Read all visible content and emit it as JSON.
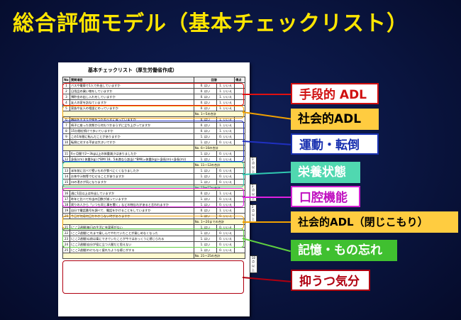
{
  "slide": {
    "title": "総合評価モデル（基本チェックリスト）"
  },
  "sheet": {
    "title": "基本チェックリスト（厚生労働省作成）",
    "header": {
      "no": "No",
      "question": "質問項目",
      "answer": "回答",
      "score": "得点"
    },
    "rows": [
      {
        "no": "1",
        "q": "バスや電車で1人で外出していますか",
        "a": "0. はい",
        "b": "1. いいえ"
      },
      {
        "no": "2",
        "q": "日用品の買い物をしていますか",
        "a": "0. はい",
        "b": "1. いいえ"
      },
      {
        "no": "3",
        "q": "預貯金の出し入れをしていますか",
        "a": "0. はい",
        "b": "1. いいえ"
      },
      {
        "no": "4",
        "q": "友人の家を訪ねていますか",
        "a": "0. はい",
        "b": "1. いいえ"
      },
      {
        "no": "5",
        "q": "家族や友人の相談にのっていますか",
        "a": "0. はい",
        "b": "1. いいえ"
      },
      {
        "sum": "No. 1～5の合計"
      },
      {
        "no": "6",
        "q": "階段を手すりや壁をつたわらずに昇っていますか",
        "a": "0. はい",
        "b": "1. いいえ"
      },
      {
        "no": "7",
        "q": "椅子に座った状態から何もつかまらずに立ち上がってますか",
        "a": "0. はい",
        "b": "1. いいえ"
      },
      {
        "no": "8",
        "q": "15分間位続けて歩いていますか",
        "a": "0. はい",
        "b": "1. いいえ"
      },
      {
        "no": "9",
        "q": "この1年間に転んだことがありますか",
        "a": "1. はい",
        "b": "0. いいえ"
      },
      {
        "no": "10",
        "q": "転倒に対する不安は大きいですか",
        "a": "1. はい",
        "b": "0. いいえ"
      },
      {
        "sum": "No. 6～10の合計"
      },
      {
        "no": "11",
        "q": "6ヶ月間で2～3kg以上の体重減少はありましたか",
        "a": "1. はい",
        "b": "0. いいえ"
      },
      {
        "no": "12",
        "q": "身長(cm) 体重(kg) (*BMI 18．5未満なら該当) *BMI(=体重(kg)÷身長(m)÷身長(m))",
        "a": "1. はい",
        "b": "0. いいえ"
      },
      {
        "sum": "No. 11～12の合計"
      },
      {
        "no": "13",
        "q": "半年前に比べて堅いものが食べにくくなりましたか",
        "a": "1. はい",
        "b": "0. いいえ"
      },
      {
        "no": "14",
        "q": "お茶や汁物等でむせることがありますか",
        "a": "1. はい",
        "b": "0. いいえ"
      },
      {
        "no": "15",
        "q": "口の渇きが気になりますか",
        "a": "1. はい",
        "b": "0. いいえ"
      },
      {
        "sum": "No. 13～15の合計"
      },
      {
        "no": "16",
        "q": "週に1回以上は外出していますか",
        "a": "0. はい",
        "b": "1. いいえ"
      },
      {
        "no": "17",
        "q": "昨年と比べて外出の回数が減っていますか",
        "a": "1. はい",
        "b": "0. いいえ"
      },
      {
        "no": "18",
        "q": "周りの人から「いつも同じ事を聞く」などの物忘れがあると言われますか",
        "a": "1. はい",
        "b": "0. いいえ"
      },
      {
        "no": "19",
        "q": "自分で電話番号を調べて、電話をかけることをしていますか",
        "a": "0. はい",
        "b": "1. いいえ"
      },
      {
        "no": "20",
        "q": "今日が何月何日かわからない時がありますか",
        "a": "1. はい",
        "b": "0. いいえ"
      },
      {
        "sum": "No. 1～20までの合計"
      },
      {
        "no": "21",
        "q": "(ここ2週間)毎日の生活に充実感がない",
        "a": "1. はい",
        "b": "0. いいえ"
      },
      {
        "no": "22",
        "q": "(ここ2週間)これまで楽しんでやれていたことが楽しめなくなった",
        "a": "1. はい",
        "b": "0. いいえ"
      },
      {
        "no": "23",
        "q": "(ここ2週間)以前は楽にできていたことが今ではおっくうに感じられる",
        "a": "1. はい",
        "b": "0. いいえ"
      },
      {
        "no": "24",
        "q": "(ここ2週間)自分が役に立つ人間だと思えない",
        "a": "1. はい",
        "b": "0. いいえ"
      },
      {
        "no": "25",
        "q": "(ここ2週間)わけもなく疲れたような感じがする",
        "a": "1. はい",
        "b": "0. いいえ"
      },
      {
        "sum": "No. 21～25の合計"
      }
    ],
    "notes": [
      "3点以上",
      "2点以上",
      "2点以上",
      "10点以上"
    ]
  },
  "labels": {
    "iadl": "手段的 ADL",
    "social_adl": "社会的ADL",
    "motor": "運動・転倒",
    "nutrition": "栄養状態",
    "oral": "口腔機能",
    "social_adl_closed": "社会的ADL（閉じこもり）",
    "memory": "記憶・もの忘れ",
    "depression": "抑うつ気分"
  },
  "colors": {
    "title": "#ffe600",
    "background": "#0a1540",
    "red": "#e01010",
    "orange": "#f0a000",
    "blue": "#2030c0",
    "teal": "#30c8b0",
    "magenta": "#e020e0",
    "green": "#60d040",
    "darkred": "#b00010"
  }
}
